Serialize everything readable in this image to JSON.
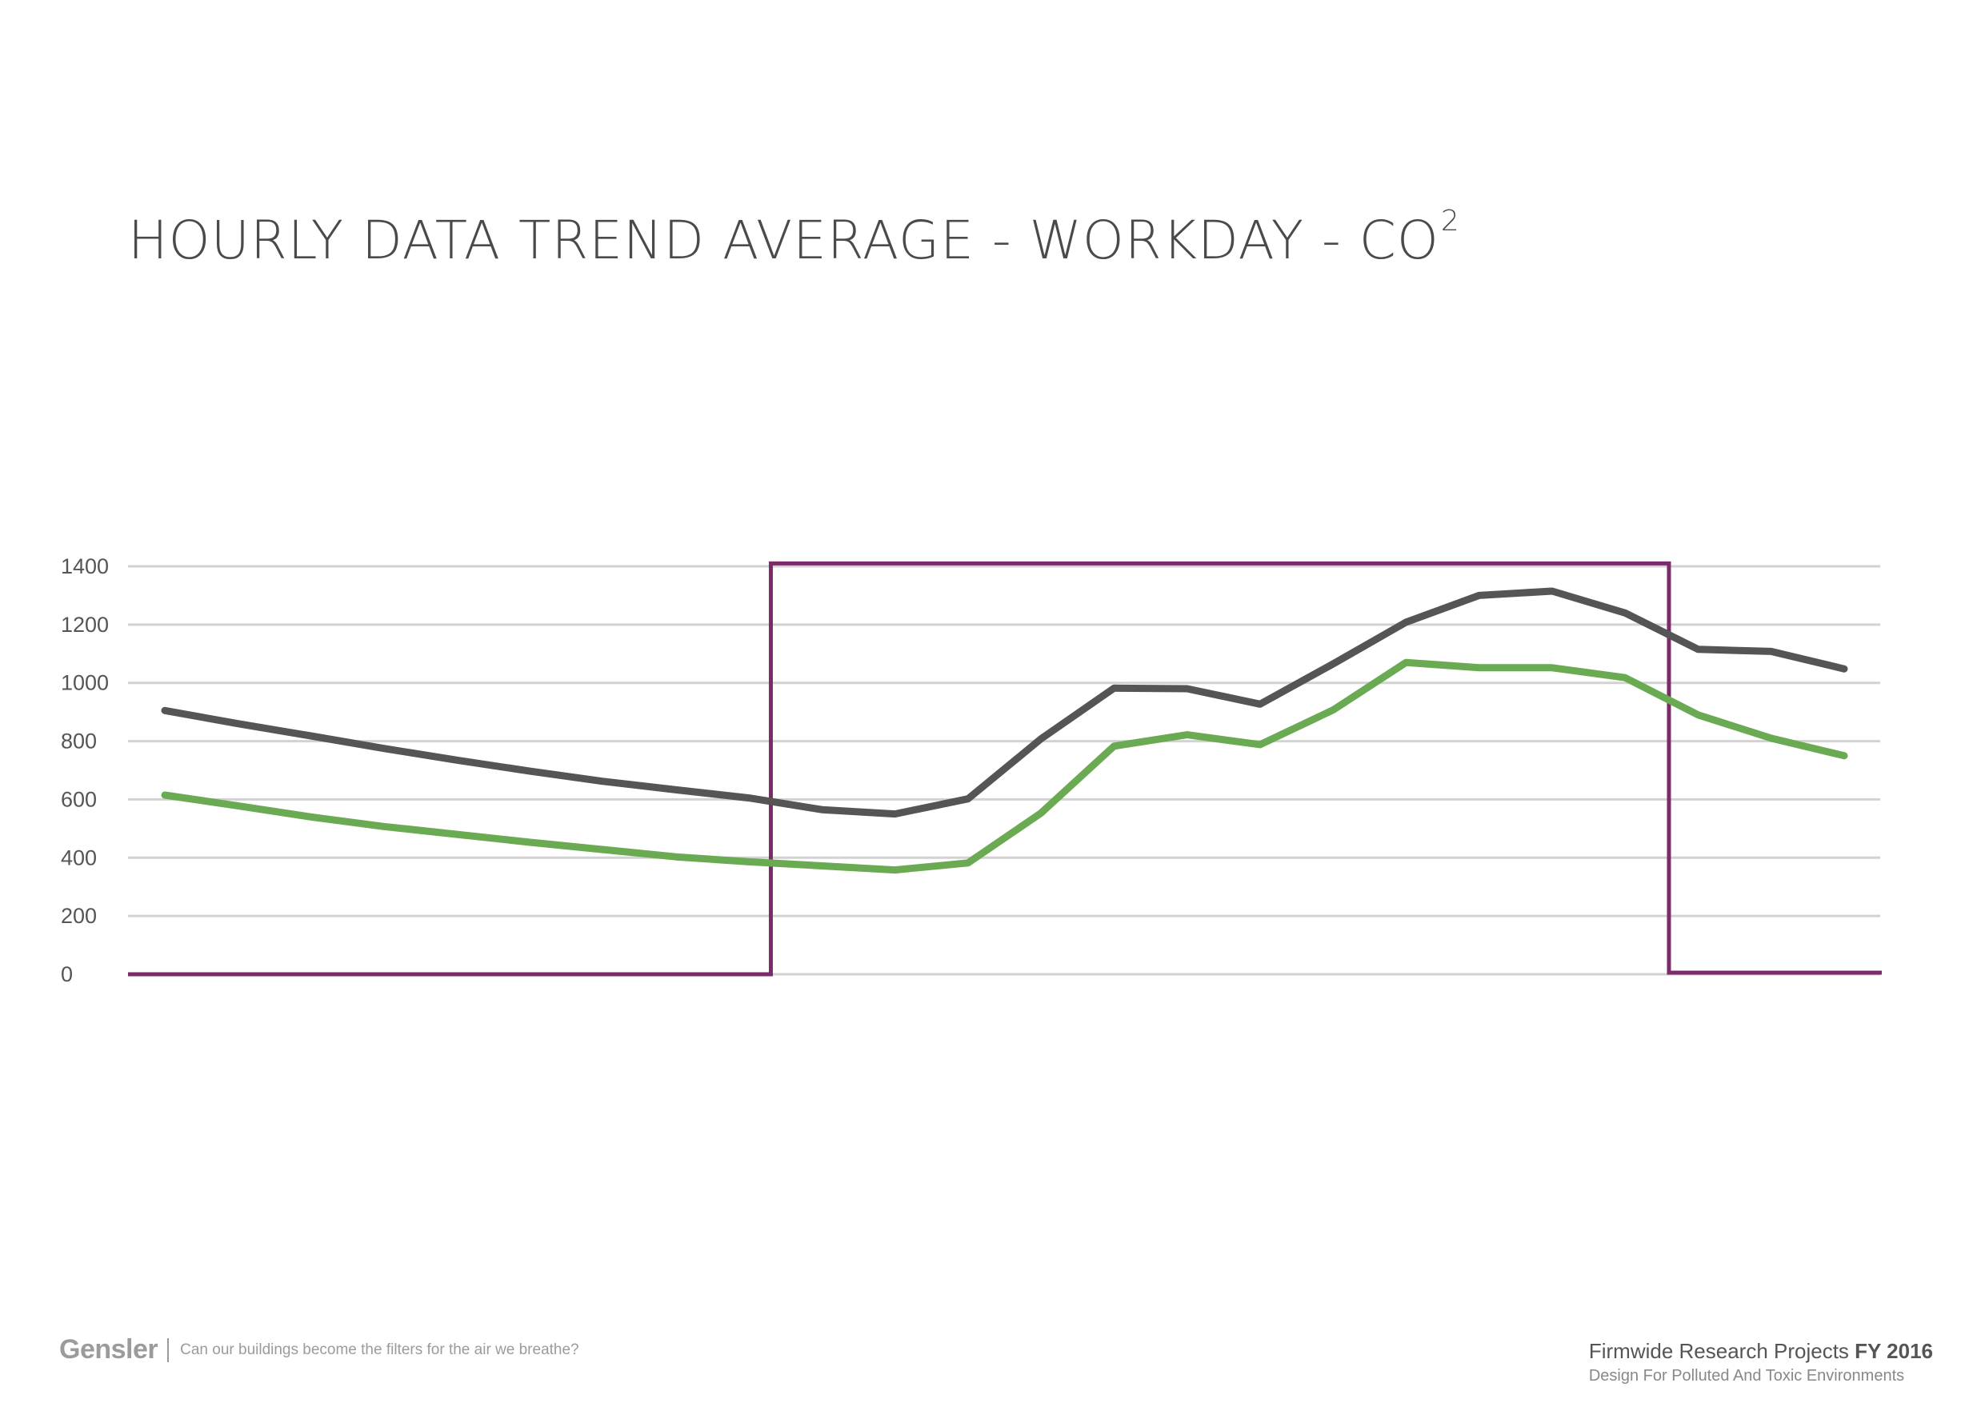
{
  "page": {
    "title_main": "HOURLY DATA TREND AVERAGE - WORKDAY - CO",
    "title_sup": "2"
  },
  "chart_data": {
    "type": "line",
    "title": "HOURLY DATA TREND AVERAGE - WORKDAY - CO2",
    "xlabel": "",
    "ylabel": "",
    "ylim": [
      0,
      1400
    ],
    "yticks": [
      0,
      200,
      400,
      600,
      800,
      1000,
      1200,
      1400
    ],
    "grid": true,
    "x": [
      0,
      1,
      2,
      3,
      4,
      5,
      6,
      7,
      8,
      9,
      10,
      11,
      12,
      13,
      14,
      15,
      16,
      17,
      18,
      19,
      20,
      21,
      22,
      23
    ],
    "series": [
      {
        "name": "series-dark",
        "color": "#555555",
        "values": [
          905,
          860,
          818,
          775,
          735,
          697,
          662,
          633,
          605,
          565,
          550,
          602,
          808,
          982,
          980,
          927,
          1065,
          1208,
          1300,
          1315,
          1240,
          1115,
          1108,
          1048
        ]
      },
      {
        "name": "series-green",
        "color": "#6aaa52",
        "values": [
          615,
          578,
          540,
          507,
          480,
          453,
          428,
          403,
          386,
          372,
          358,
          382,
          553,
          783,
          822,
          788,
          907,
          1070,
          1052,
          1052,
          1018,
          890,
          810,
          750
        ]
      }
    ],
    "workday_window": {
      "color": "#7b2a6a",
      "start_x": 8.3,
      "end_x": 20.6,
      "value": 1410
    }
  },
  "footer": {
    "brand": "Gensler",
    "tagline": "Can our buildings become the filters for the air we breathe?",
    "project": "Firmwide Research Projects",
    "year": "FY 2016",
    "subtitle": "Design For Polluted And Toxic Environments"
  }
}
